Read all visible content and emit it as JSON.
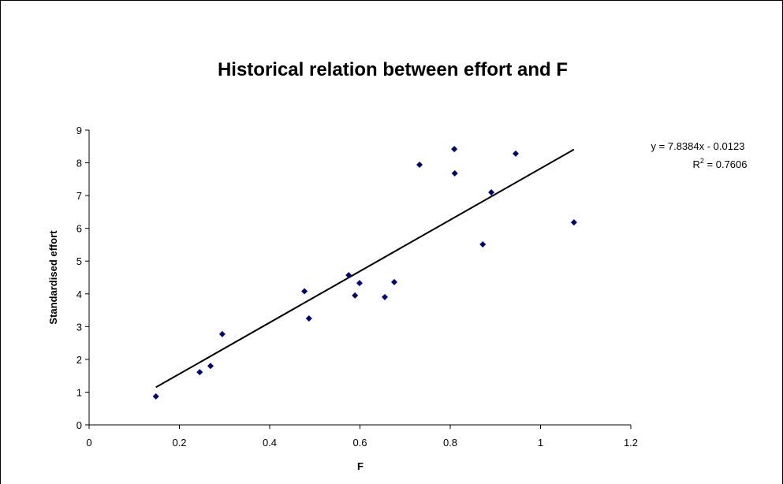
{
  "chart_data": {
    "type": "scatter",
    "title": "Historical relation between effort and F",
    "xlabel": "F",
    "ylabel": "Standardised effort",
    "x": [
      0.148,
      0.245,
      0.269,
      0.295,
      0.477,
      0.487,
      0.575,
      0.589,
      0.599,
      0.655,
      0.676,
      0.732,
      0.809,
      0.81,
      0.872,
      0.891,
      0.945,
      1.074
    ],
    "values": [
      0.87,
      1.61,
      1.8,
      2.77,
      4.08,
      3.25,
      4.57,
      3.95,
      4.33,
      3.9,
      4.36,
      7.94,
      8.42,
      7.68,
      5.51,
      7.1,
      8.28,
      6.18
    ],
    "color": "#000080",
    "xlim": [
      0,
      1.2
    ],
    "xticks": [
      0,
      0.2,
      0.4,
      0.6,
      0.8,
      1,
      1.2
    ],
    "ylim": [
      0,
      9
    ],
    "yticks": [
      0,
      1,
      2,
      3,
      4,
      5,
      6,
      7,
      8,
      9
    ],
    "trendline": {
      "slope": 7.8384,
      "intercept": -0.0123,
      "color": "#000000",
      "equation": "y = 7.8384x - 0.0123",
      "r2_label": {
        "base": "R",
        "sup": "2",
        "rest": " = 0.7606"
      }
    }
  }
}
